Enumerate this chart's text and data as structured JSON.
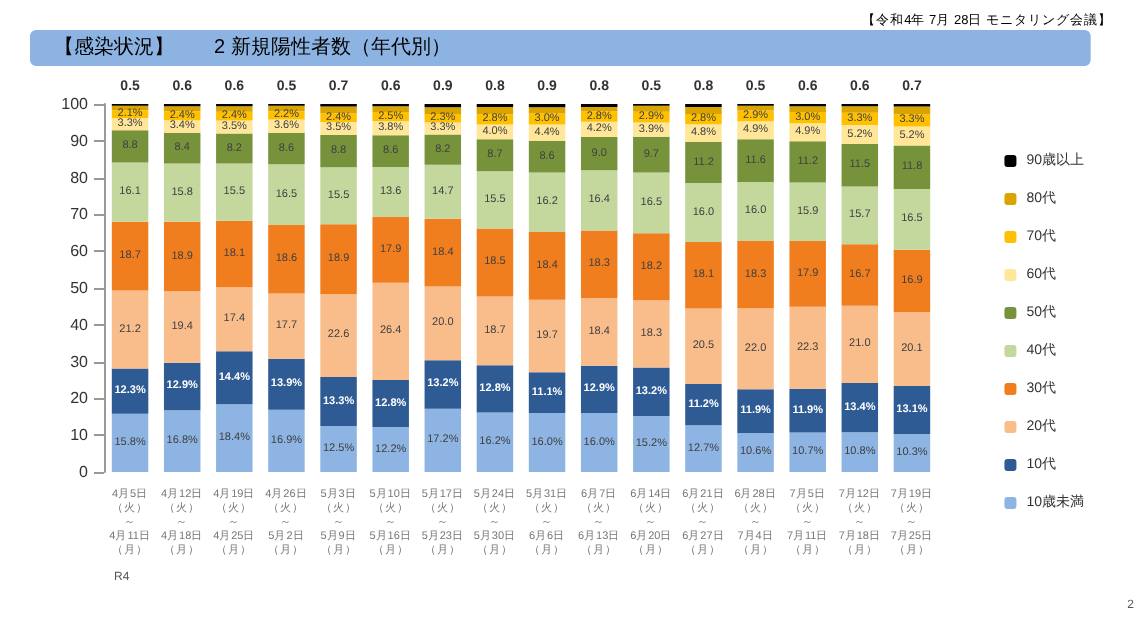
{
  "chart_data": {
    "type": "bar",
    "stacked": true,
    "title": "【感染状況】　　2 新規陽性者数（年代別）",
    "subtitle": "【令和4年 7月 28日 モニタリング会議】",
    "annotations": [
      "R4",
      "2"
    ],
    "categories": [
      "4月5日（火）～4月11日（月）",
      "4月12日（火）～4月18日（月）",
      "4月19日（火）～4月25日（月）",
      "4月26日（火）～5月2日（月）",
      "5月3日（火）～5月9日（月）",
      "5月10日（火）～5月16日（月）",
      "5月17日（火）～5月23日（月）",
      "5月24日（火）～5月30日（月）",
      "5月31日（火）～6月6日（月）",
      "6月7日（火）～6月13日（月）",
      "6月14日（火）～6月20日（月）",
      "6月21日（火）～6月27日（月）",
      "6月28日（火）～7月4日（月）",
      "7月5日（火）～7月11日（月）",
      "7月12日（火）～7月18日（月）",
      "7月19日（火）～7月25日（月）"
    ],
    "series": [
      {
        "name": "10歳未満",
        "color": "#8db4e2",
        "values": [
          15.8,
          16.8,
          18.4,
          16.9,
          12.5,
          12.2,
          17.2,
          16.2,
          16.0,
          16.0,
          15.2,
          12.7,
          10.6,
          10.7,
          10.8,
          10.3
        ],
        "value_labels": [
          "15.8%",
          "16.8%",
          "18.4%",
          "16.9%",
          "12.5%",
          "12.2%",
          "17.2%",
          "16.2%",
          "16.0%",
          "16.0%",
          "15.2%",
          "12.7%",
          "10.6%",
          "10.7%",
          "10.8%",
          "10.3%"
        ]
      },
      {
        "name": "10代",
        "color": "#2f5b95",
        "values": [
          12.3,
          12.9,
          14.4,
          13.9,
          13.3,
          12.8,
          13.2,
          12.8,
          11.1,
          12.9,
          13.2,
          11.2,
          11.9,
          11.9,
          13.4,
          13.1
        ],
        "value_labels": [
          "12.3%",
          "12.9%",
          "14.4%",
          "13.9%",
          "13.3%",
          "12.8%",
          "13.2%",
          "12.8%",
          "11.1%",
          "12.9%",
          "13.2%",
          "11.2%",
          "11.9%",
          "11.9%",
          "13.4%",
          "13.1%"
        ]
      },
      {
        "name": "20代",
        "color": "#f9bd8c",
        "values": [
          21.2,
          19.4,
          17.4,
          17.7,
          22.6,
          26.4,
          20.0,
          18.7,
          19.7,
          18.4,
          18.3,
          20.5,
          22.0,
          22.3,
          21.0,
          20.1
        ],
        "value_labels": [
          "21.2",
          "19.4",
          "17.4",
          "17.7",
          "22.6",
          "26.4",
          "20.0",
          "18.7",
          "19.7",
          "18.4",
          "18.3",
          "20.5",
          "22.0",
          "22.3",
          "21.0",
          "20.1"
        ]
      },
      {
        "name": "30代",
        "color": "#f07d1e",
        "values": [
          18.7,
          18.9,
          18.1,
          18.6,
          18.9,
          17.9,
          18.4,
          18.5,
          18.4,
          18.3,
          18.2,
          18.1,
          18.3,
          17.9,
          16.7,
          16.9
        ],
        "value_labels": [
          "18.7",
          "18.9",
          "18.1",
          "18.6",
          "18.9",
          "17.9",
          "18.4",
          "18.5",
          "18.4",
          "18.3",
          "18.2",
          "18.1",
          "18.3",
          "17.9",
          "16.7",
          "16.9"
        ]
      },
      {
        "name": "40代",
        "color": "#c4d79c",
        "values": [
          16.1,
          15.8,
          15.5,
          16.5,
          15.5,
          13.6,
          14.7,
          15.5,
          16.2,
          16.4,
          16.5,
          16.0,
          16.0,
          15.9,
          15.7,
          16.5
        ],
        "value_labels": [
          "16.1",
          "15.8",
          "15.5",
          "16.5",
          "15.5",
          "13.6",
          "14.7",
          "15.5",
          "16.2",
          "16.4",
          "16.5",
          "16.0",
          "16.0",
          "15.9",
          "15.7",
          "16.5"
        ]
      },
      {
        "name": "50代",
        "color": "#76933c",
        "values": [
          8.8,
          8.4,
          8.2,
          8.6,
          8.8,
          8.6,
          8.2,
          8.7,
          8.6,
          9.0,
          9.7,
          11.2,
          11.6,
          11.2,
          11.5,
          11.8
        ],
        "value_labels": [
          "8.8",
          "8.4",
          "8.2",
          "8.6",
          "8.8",
          "8.6",
          "8.2",
          "8.7",
          "8.6",
          "9.0",
          "9.7",
          "11.2",
          "11.6",
          "11.2",
          "11.5",
          "11.8"
        ]
      },
      {
        "name": "60代",
        "color": "#ffe699",
        "values": [
          3.3,
          3.4,
          3.5,
          3.6,
          3.5,
          3.8,
          3.3,
          4.0,
          4.4,
          4.2,
          3.9,
          4.8,
          4.9,
          4.9,
          5.2,
          5.2
        ],
        "value_labels": [
          "3.3%",
          "3.4%",
          "3.5%",
          "3.6%",
          "3.5%",
          "3.8%",
          "3.3%",
          "4.0%",
          "4.4%",
          "4.2%",
          "3.9%",
          "4.8%",
          "4.9%",
          "4.9%",
          "5.2%",
          "5.2%"
        ]
      },
      {
        "name": "70代",
        "color": "#ffc000",
        "values": [
          2.1,
          2.4,
          2.4,
          2.2,
          2.4,
          2.5,
          2.3,
          2.8,
          3.0,
          2.8,
          2.9,
          2.8,
          2.9,
          3.0,
          3.3,
          3.3
        ],
        "value_labels": [
          "2.1%",
          "2.4%",
          "2.4%",
          "2.2%",
          "2.4%",
          "2.5%",
          "2.3%",
          "2.8%",
          "3.0%",
          "2.8%",
          "2.9%",
          "2.8%",
          "2.9%",
          "3.0%",
          "3.3%",
          "3.3%"
        ]
      },
      {
        "name": "80代",
        "color": "#d9a300",
        "values": [
          1.2,
          1.4,
          1.5,
          1.5,
          1.8,
          1.6,
          1.8,
          2.0,
          1.7,
          1.2,
          1.6,
          1.9,
          1.3,
          1.6,
          1.8,
          2.1
        ]
      },
      {
        "name": "90歳以上",
        "color": "#000000",
        "values": [
          0.5,
          0.6,
          0.6,
          0.5,
          0.7,
          0.6,
          0.9,
          0.8,
          0.9,
          0.8,
          0.5,
          0.8,
          0.5,
          0.6,
          0.6,
          0.7
        ],
        "value_labels": [
          "0.5",
          "0.6",
          "0.6",
          "0.5",
          "0.7",
          "0.6",
          "0.9",
          "0.8",
          "0.9",
          "0.8",
          "0.5",
          "0.8",
          "0.5",
          "0.6",
          "0.6",
          "0.7"
        ]
      }
    ],
    "ylim": [
      0,
      100
    ],
    "yticks": [
      0,
      10,
      20,
      30,
      40,
      50,
      60,
      70,
      80,
      90,
      100
    ],
    "grid": false,
    "legend": "right"
  }
}
